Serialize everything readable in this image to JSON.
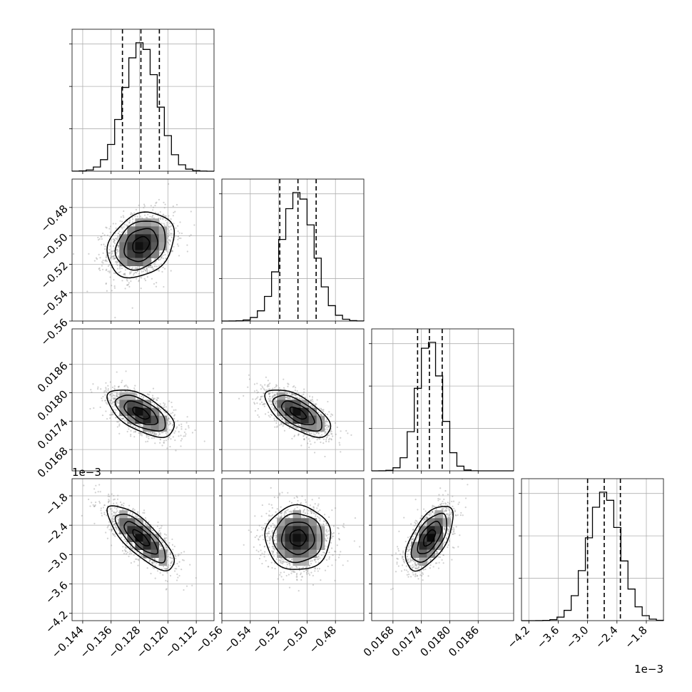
{
  "chart_data": {
    "type": "corner",
    "parameters": [
      {
        "range": [
          -0.147,
          -0.107
        ],
        "ticks": [
          -0.144,
          -0.136,
          -0.128,
          -0.12,
          -0.112
        ],
        "tick_labels": [
          "−0.144",
          "−0.136",
          "−0.128",
          "−0.120",
          "−0.112"
        ],
        "offset_label": "",
        "quantiles": [
          -0.1328,
          -0.1276,
          -0.1224
        ],
        "mean": -0.1276,
        "sd": 0.0047
      },
      {
        "range": [
          -0.56,
          -0.46
        ],
        "ticks": [
          -0.56,
          -0.54,
          -0.52,
          -0.5,
          -0.48
        ],
        "tick_labels": [
          "−0.56",
          "−0.54",
          "−0.52",
          "−0.50",
          "−0.48"
        ],
        "offset_label": "",
        "quantiles": [
          -0.5192,
          -0.5064,
          -0.4936
        ],
        "mean": -0.5064,
        "sd": 0.0115
      },
      {
        "range": [
          0.01635,
          0.01935
        ],
        "ticks": [
          0.0168,
          0.0174,
          0.018,
          0.0186
        ],
        "tick_labels": [
          "0.0168",
          "0.0174",
          "0.0180",
          "0.0186"
        ],
        "offset_label": "",
        "quantiles": [
          0.01732,
          0.01757,
          0.01784
        ],
        "mean": 0.01757,
        "sd": 0.00025
      },
      {
        "range": [
          -4.35,
          -1.45
        ],
        "ticks": [
          -4.2,
          -3.6,
          -3.0,
          -2.4,
          -1.8
        ],
        "tick_labels": [
          "−4.2",
          "−3.6",
          "−3.0",
          "−2.4",
          "−1.8"
        ],
        "offset_label": "1e−3",
        "quantiles": [
          -3.0,
          -2.66,
          -2.33
        ],
        "mean": -2.66,
        "sd": 0.33
      }
    ],
    "correlations": [
      {
        "pair": [
          0,
          1
        ],
        "rho": 0.25
      },
      {
        "pair": [
          0,
          2
        ],
        "rho": -0.6
      },
      {
        "pair": [
          0,
          3
        ],
        "rho": -0.78
      },
      {
        "pair": [
          1,
          2
        ],
        "rho": -0.65
      },
      {
        "pair": [
          1,
          3
        ],
        "rho": 0.0
      },
      {
        "pair": [
          2,
          3
        ],
        "rho": 0.6
      }
    ],
    "histogram_bins": 20,
    "grid": true,
    "quantile_lines": "dashed",
    "contours": "filled density with contour lines"
  }
}
